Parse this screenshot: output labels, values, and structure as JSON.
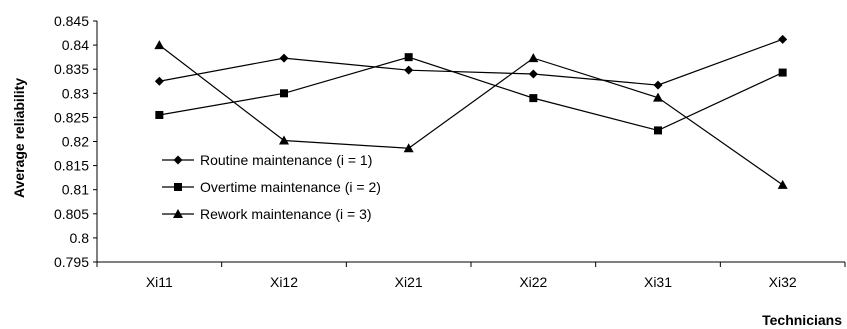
{
  "chart_data": {
    "type": "line",
    "title": "",
    "xlabel": "Technicians",
    "ylabel": "Average reliability",
    "categories": [
      "Xi11",
      "Xi12",
      "Xi21",
      "Xi22",
      "Xi31",
      "Xi32"
    ],
    "ylim": [
      0.795,
      0.845
    ],
    "yticks": [
      "0.795",
      "0.8",
      "0.805",
      "0.81",
      "0.815",
      "0.82",
      "0.825",
      "0.83",
      "0.835",
      "0.84",
      "0.845"
    ],
    "grid": false,
    "legend_position": "bottom-left",
    "series": [
      {
        "name": "Routine maintenance (i = 1)",
        "marker": "diamond",
        "color": "#000000",
        "values": [
          0.8325,
          0.8373,
          0.8348,
          0.834,
          0.8317,
          0.8412
        ]
      },
      {
        "name": "Overtime maintenance (i = 2)",
        "marker": "square",
        "color": "#000000",
        "values": [
          0.8255,
          0.83,
          0.8375,
          0.829,
          0.8223,
          0.8343
        ]
      },
      {
        "name": "Rework maintenance (i = 3)",
        "marker": "triangle",
        "color": "#000000",
        "values": [
          0.84,
          0.8202,
          0.8186,
          0.8373,
          0.8291,
          0.811
        ]
      }
    ]
  }
}
